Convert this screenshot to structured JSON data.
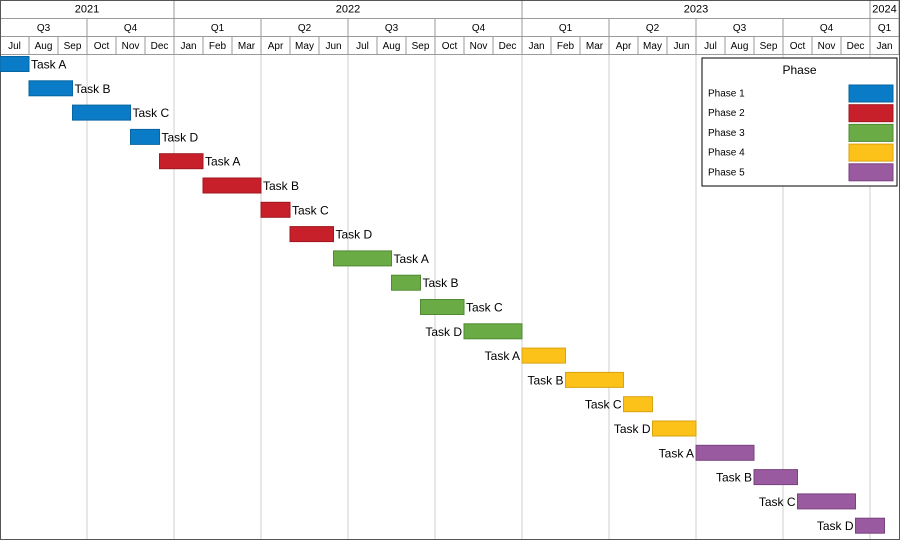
{
  "chart_data": {
    "type": "gantt",
    "title": "",
    "time_axis": {
      "start": "2021-07",
      "end": "2024-01",
      "years": [
        {
          "label": "2021",
          "start": 0,
          "end": 6
        },
        {
          "label": "2022",
          "start": 6,
          "end": 18
        },
        {
          "label": "2023",
          "start": 18,
          "end": 30
        },
        {
          "label": "2024",
          "start": 30,
          "end": 31
        }
      ],
      "quarters": [
        {
          "label": "Q3",
          "start": 0,
          "end": 3
        },
        {
          "label": "Q4",
          "start": 3,
          "end": 6
        },
        {
          "label": "Q1",
          "start": 6,
          "end": 9
        },
        {
          "label": "Q2",
          "start": 9,
          "end": 12
        },
        {
          "label": "Q3",
          "start": 12,
          "end": 15
        },
        {
          "label": "Q4",
          "start": 15,
          "end": 18
        },
        {
          "label": "Q1",
          "start": 18,
          "end": 21
        },
        {
          "label": "Q2",
          "start": 21,
          "end": 24
        },
        {
          "label": "Q3",
          "start": 24,
          "end": 27
        },
        {
          "label": "Q4",
          "start": 27,
          "end": 30
        },
        {
          "label": "Q1",
          "start": 30,
          "end": 31
        }
      ],
      "months": [
        "Jul",
        "Aug",
        "Sep",
        "Oct",
        "Nov",
        "Dec",
        "Jan",
        "Feb",
        "Mar",
        "Apr",
        "May",
        "Jun",
        "Jul",
        "Aug",
        "Sep",
        "Oct",
        "Nov",
        "Dec",
        "Jan",
        "Feb",
        "Mar",
        "Apr",
        "May",
        "Jun",
        "Jul",
        "Aug",
        "Sep",
        "Oct",
        "Nov",
        "Dec",
        "Jan"
      ]
    },
    "phases": [
      {
        "name": "Phase 1",
        "color": "#0a7bc6",
        "border": "#07659f"
      },
      {
        "name": "Phase 2",
        "color": "#c8202a",
        "border": "#9e1820"
      },
      {
        "name": "Phase 3",
        "color": "#6aab45",
        "border": "#508a33"
      },
      {
        "name": "Phase 4",
        "color": "#fdc21a",
        "border": "#d9a20f"
      },
      {
        "name": "Phase 5",
        "color": "#9a5aa0",
        "border": "#794380"
      }
    ],
    "tasks": [
      {
        "name": "Task A",
        "phase": 0,
        "start": 0.0,
        "end": 1.0,
        "label_side": "right"
      },
      {
        "name": "Task B",
        "phase": 0,
        "start": 1.0,
        "end": 2.5,
        "label_side": "right"
      },
      {
        "name": "Task C",
        "phase": 0,
        "start": 2.5,
        "end": 4.5,
        "label_side": "right"
      },
      {
        "name": "Task D",
        "phase": 0,
        "start": 4.5,
        "end": 5.5,
        "label_side": "right"
      },
      {
        "name": "Task A",
        "phase": 1,
        "start": 5.5,
        "end": 7.0,
        "label_side": "right"
      },
      {
        "name": "Task B",
        "phase": 1,
        "start": 7.0,
        "end": 9.0,
        "label_side": "right"
      },
      {
        "name": "Task C",
        "phase": 1,
        "start": 9.0,
        "end": 10.0,
        "label_side": "right"
      },
      {
        "name": "Task D",
        "phase": 1,
        "start": 10.0,
        "end": 11.5,
        "label_side": "right"
      },
      {
        "name": "Task A",
        "phase": 2,
        "start": 11.5,
        "end": 13.5,
        "label_side": "right"
      },
      {
        "name": "Task B",
        "phase": 2,
        "start": 13.5,
        "end": 14.5,
        "label_side": "right"
      },
      {
        "name": "Task C",
        "phase": 2,
        "start": 14.5,
        "end": 16.0,
        "label_side": "right"
      },
      {
        "name": "Task D",
        "phase": 2,
        "start": 16.0,
        "end": 18.0,
        "label_side": "left"
      },
      {
        "name": "Task A",
        "phase": 3,
        "start": 18.0,
        "end": 19.5,
        "label_side": "left"
      },
      {
        "name": "Task B",
        "phase": 3,
        "start": 19.5,
        "end": 21.5,
        "label_side": "left"
      },
      {
        "name": "Task C",
        "phase": 3,
        "start": 21.5,
        "end": 22.5,
        "label_side": "left"
      },
      {
        "name": "Task D",
        "phase": 3,
        "start": 22.5,
        "end": 24.0,
        "label_side": "left"
      },
      {
        "name": "Task A",
        "phase": 4,
        "start": 24.0,
        "end": 26.0,
        "label_side": "left"
      },
      {
        "name": "Task B",
        "phase": 4,
        "start": 26.0,
        "end": 27.5,
        "label_side": "left"
      },
      {
        "name": "Task C",
        "phase": 4,
        "start": 27.5,
        "end": 29.5,
        "label_side": "left"
      },
      {
        "name": "Task D",
        "phase": 4,
        "start": 29.5,
        "end": 30.5,
        "label_side": "left"
      }
    ],
    "legend": {
      "title": "Phase",
      "placement": "top-right"
    }
  }
}
